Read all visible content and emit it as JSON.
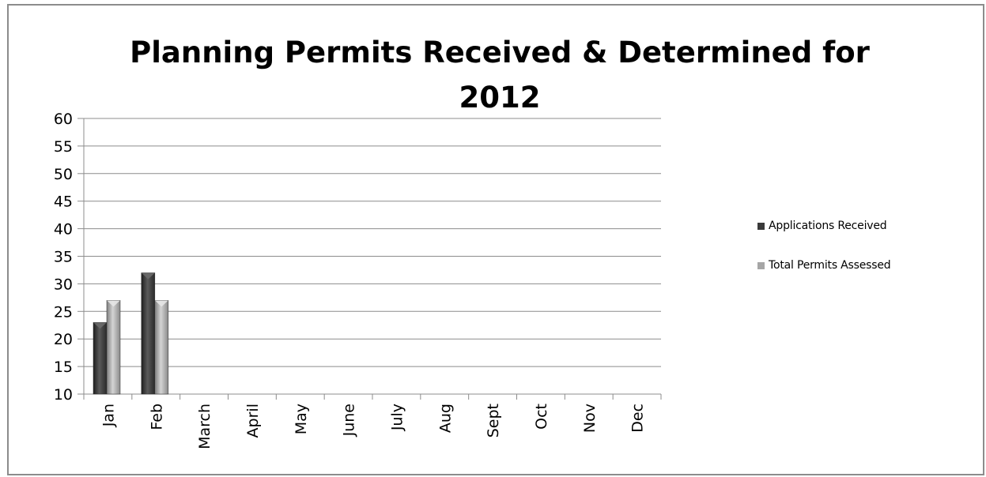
{
  "chart_data": {
    "type": "bar",
    "title_lines": [
      "Planning Permits Received & Determined for",
      "2012"
    ],
    "xlabel": "",
    "ylabel": "",
    "ylim": [
      10,
      60
    ],
    "yticks": [
      10,
      15,
      20,
      25,
      30,
      35,
      40,
      45,
      50,
      55,
      60
    ],
    "grid": true,
    "legend_position": "right",
    "categories": [
      "Jan",
      "Feb",
      "March",
      "April",
      "May",
      "June",
      "July",
      "Aug",
      "Sept",
      "Oct",
      "Nov",
      "Dec"
    ],
    "series": [
      {
        "name": "Applications Received",
        "color": "#3a3a3a",
        "values": [
          23,
          32,
          null,
          null,
          null,
          null,
          null,
          null,
          null,
          null,
          null,
          null
        ]
      },
      {
        "name": "Total Permits Assessed",
        "color": "#a6a6a6",
        "values": [
          27,
          27,
          null,
          null,
          null,
          null,
          null,
          null,
          null,
          null,
          null,
          null
        ]
      }
    ]
  }
}
